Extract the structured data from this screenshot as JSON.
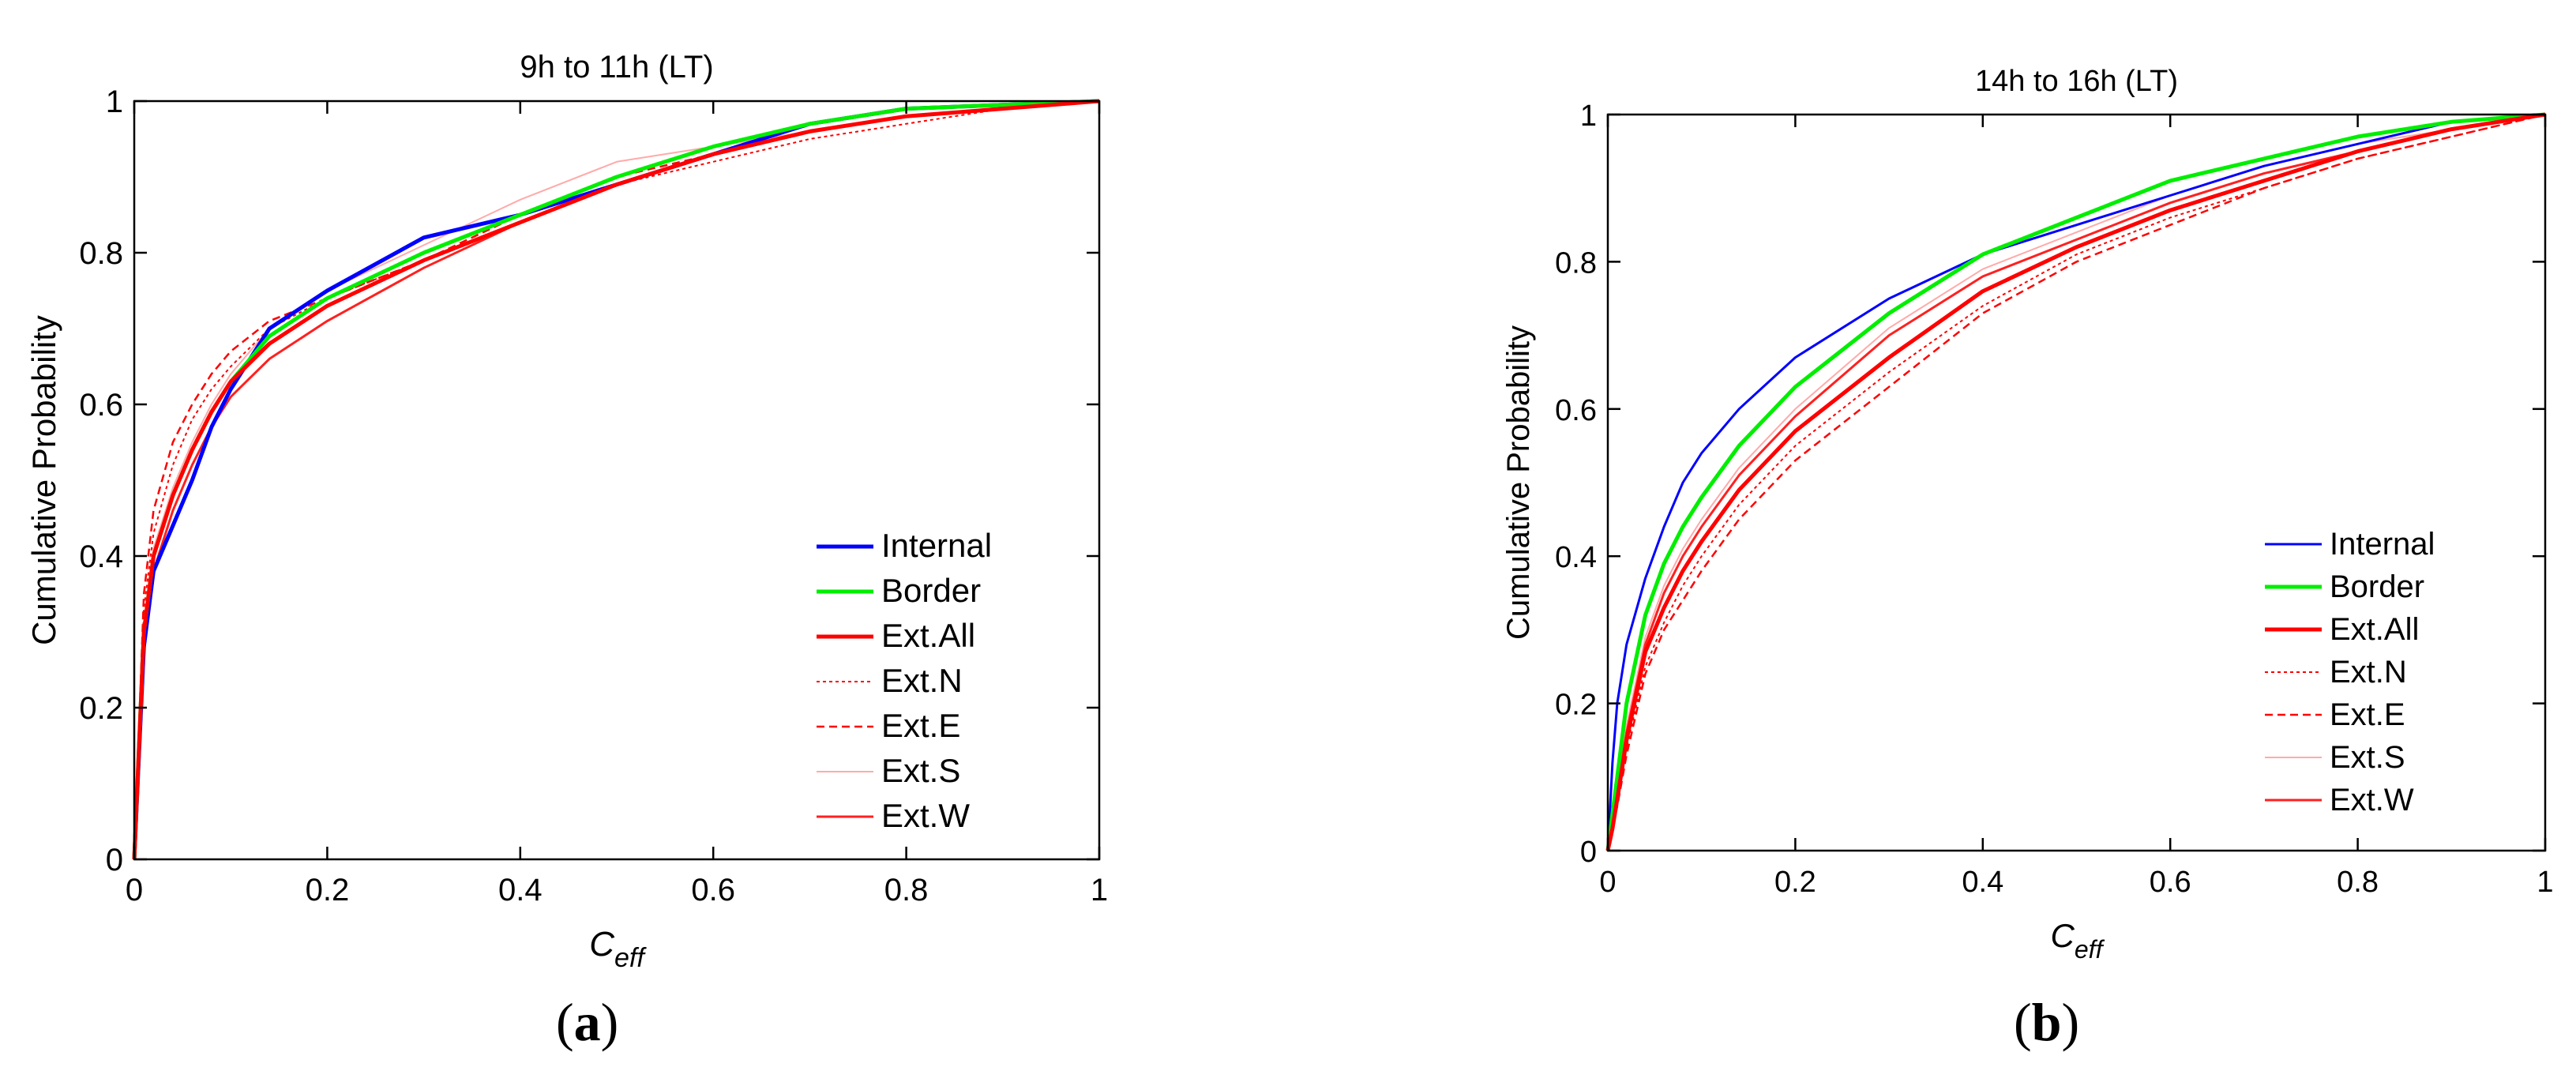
{
  "chart_data": [
    {
      "type": "line",
      "panel_label": "(a)",
      "panel_label_parts": [
        "(",
        "a",
        ")"
      ],
      "title": "9h to 11h (LT)",
      "xlabel": "C",
      "xlabel_subscript": "eff",
      "ylabel": "Cumulative Probability",
      "xlim": [
        0,
        1
      ],
      "ylim": [
        0,
        1
      ],
      "xticks": [
        "0",
        "0.2",
        "0.4",
        "0.6",
        "0.8",
        "1"
      ],
      "yticks": [
        "0",
        "0.2",
        "0.4",
        "0.6",
        "0.8",
        "1"
      ],
      "legend_position": "lower-right",
      "series": [
        {
          "name": "Internal",
          "color": "#0000ff",
          "style": "solid-thick",
          "x": [
            0,
            0.01,
            0.02,
            0.04,
            0.06,
            0.08,
            0.1,
            0.14,
            0.2,
            0.3,
            0.4,
            0.5,
            0.6,
            0.7,
            0.8,
            0.9,
            1.0
          ],
          "y": [
            0,
            0.28,
            0.38,
            0.44,
            0.5,
            0.57,
            0.62,
            0.7,
            0.75,
            0.82,
            0.85,
            0.89,
            0.93,
            0.97,
            0.99,
            0.995,
            1.0
          ]
        },
        {
          "name": "Border",
          "color": "#00ee00",
          "style": "solid-thick",
          "x": [
            0,
            0.01,
            0.02,
            0.04,
            0.06,
            0.08,
            0.1,
            0.14,
            0.2,
            0.3,
            0.4,
            0.5,
            0.6,
            0.7,
            0.8,
            0.9,
            1.0
          ],
          "y": [
            0,
            0.3,
            0.4,
            0.48,
            0.54,
            0.59,
            0.63,
            0.69,
            0.74,
            0.8,
            0.85,
            0.9,
            0.94,
            0.97,
            0.99,
            0.995,
            1.0
          ]
        },
        {
          "name": "Ext.All",
          "color": "#ff0000",
          "style": "solid-thick",
          "x": [
            0,
            0.01,
            0.02,
            0.04,
            0.06,
            0.08,
            0.1,
            0.14,
            0.2,
            0.3,
            0.4,
            0.5,
            0.6,
            0.7,
            0.8,
            0.9,
            1.0
          ],
          "y": [
            0,
            0.3,
            0.4,
            0.48,
            0.54,
            0.59,
            0.63,
            0.68,
            0.73,
            0.79,
            0.84,
            0.89,
            0.93,
            0.96,
            0.98,
            0.99,
            1.0
          ]
        },
        {
          "name": "Ext.N",
          "color": "#ff0000",
          "style": "dotted",
          "x": [
            0,
            0.01,
            0.02,
            0.04,
            0.06,
            0.08,
            0.1,
            0.14,
            0.2,
            0.3,
            0.4,
            0.5,
            0.6,
            0.7,
            0.8,
            0.9,
            1.0
          ],
          "y": [
            0,
            0.33,
            0.43,
            0.52,
            0.58,
            0.62,
            0.65,
            0.7,
            0.74,
            0.79,
            0.84,
            0.89,
            0.92,
            0.95,
            0.97,
            0.99,
            1.0
          ]
        },
        {
          "name": "Ext.E",
          "color": "#ff0000",
          "style": "dashed",
          "x": [
            0,
            0.01,
            0.02,
            0.04,
            0.06,
            0.08,
            0.1,
            0.14,
            0.2,
            0.3,
            0.4,
            0.5,
            0.6,
            0.7,
            0.8,
            0.9,
            1.0
          ],
          "y": [
            0,
            0.35,
            0.46,
            0.55,
            0.6,
            0.64,
            0.67,
            0.71,
            0.74,
            0.79,
            0.85,
            0.9,
            0.93,
            0.96,
            0.98,
            0.99,
            1.0
          ]
        },
        {
          "name": "Ext.S",
          "color": "#ffaaaa",
          "style": "thin",
          "x": [
            0,
            0.01,
            0.02,
            0.04,
            0.06,
            0.08,
            0.1,
            0.14,
            0.2,
            0.3,
            0.4,
            0.5,
            0.6,
            0.7,
            0.8,
            0.9,
            1.0
          ],
          "y": [
            0,
            0.31,
            0.41,
            0.49,
            0.55,
            0.6,
            0.64,
            0.7,
            0.75,
            0.81,
            0.87,
            0.92,
            0.94,
            0.96,
            0.98,
            0.99,
            1.0
          ]
        },
        {
          "name": "Ext.W",
          "color": "#ff2020",
          "style": "solid-thin",
          "x": [
            0,
            0.01,
            0.02,
            0.04,
            0.06,
            0.08,
            0.1,
            0.14,
            0.2,
            0.3,
            0.4,
            0.5,
            0.6,
            0.7,
            0.8,
            0.9,
            1.0
          ],
          "y": [
            0,
            0.28,
            0.38,
            0.46,
            0.52,
            0.57,
            0.61,
            0.66,
            0.71,
            0.78,
            0.84,
            0.89,
            0.93,
            0.96,
            0.98,
            0.99,
            1.0
          ]
        }
      ]
    },
    {
      "type": "line",
      "panel_label": "(b)",
      "panel_label_parts": [
        "(",
        "b",
        ")"
      ],
      "title": "14h to 16h (LT)",
      "xlabel": "C",
      "xlabel_subscript": "eff",
      "ylabel": "Cumulative Probability",
      "xlim": [
        0,
        1
      ],
      "ylim": [
        0,
        1
      ],
      "xticks": [
        "0",
        "0.2",
        "0.4",
        "0.6",
        "0.8",
        "1"
      ],
      "yticks": [
        "0",
        "0.2",
        "0.4",
        "0.6",
        "0.8",
        "1"
      ],
      "legend_position": "lower-right",
      "series": [
        {
          "name": "Internal",
          "color": "#0000ff",
          "style": "solid-thin",
          "x": [
            0,
            0.005,
            0.01,
            0.02,
            0.04,
            0.06,
            0.08,
            0.1,
            0.14,
            0.2,
            0.3,
            0.4,
            0.5,
            0.6,
            0.7,
            0.8,
            0.9,
            1.0
          ],
          "y": [
            0,
            0.12,
            0.2,
            0.28,
            0.37,
            0.44,
            0.5,
            0.54,
            0.6,
            0.67,
            0.75,
            0.81,
            0.85,
            0.89,
            0.93,
            0.96,
            0.99,
            1.0
          ]
        },
        {
          "name": "Border",
          "color": "#00ee00",
          "style": "solid-thick",
          "x": [
            0,
            0.005,
            0.01,
            0.02,
            0.04,
            0.06,
            0.08,
            0.1,
            0.14,
            0.2,
            0.3,
            0.4,
            0.5,
            0.6,
            0.7,
            0.8,
            0.9,
            1.0
          ],
          "y": [
            0,
            0.05,
            0.1,
            0.2,
            0.32,
            0.39,
            0.44,
            0.48,
            0.55,
            0.63,
            0.73,
            0.81,
            0.86,
            0.91,
            0.94,
            0.97,
            0.99,
            1.0
          ]
        },
        {
          "name": "Ext.All",
          "color": "#ff0000",
          "style": "solid-thick",
          "x": [
            0,
            0.005,
            0.01,
            0.02,
            0.04,
            0.06,
            0.08,
            0.1,
            0.14,
            0.2,
            0.3,
            0.4,
            0.5,
            0.6,
            0.7,
            0.8,
            0.9,
            1.0
          ],
          "y": [
            0,
            0.03,
            0.07,
            0.15,
            0.27,
            0.33,
            0.38,
            0.42,
            0.49,
            0.57,
            0.67,
            0.76,
            0.82,
            0.87,
            0.91,
            0.95,
            0.98,
            1.0
          ]
        },
        {
          "name": "Ext.N",
          "color": "#ff0000",
          "style": "dotted",
          "x": [
            0,
            0.005,
            0.01,
            0.02,
            0.04,
            0.06,
            0.08,
            0.1,
            0.14,
            0.2,
            0.3,
            0.4,
            0.5,
            0.6,
            0.7,
            0.8,
            0.9,
            1.0
          ],
          "y": [
            0,
            0.03,
            0.06,
            0.14,
            0.25,
            0.31,
            0.36,
            0.4,
            0.47,
            0.55,
            0.65,
            0.74,
            0.81,
            0.86,
            0.9,
            0.94,
            0.97,
            1.0
          ]
        },
        {
          "name": "Ext.E",
          "color": "#ff0000",
          "style": "dashed",
          "x": [
            0,
            0.005,
            0.01,
            0.02,
            0.04,
            0.06,
            0.08,
            0.1,
            0.14,
            0.2,
            0.3,
            0.4,
            0.5,
            0.6,
            0.7,
            0.8,
            0.9,
            1.0
          ],
          "y": [
            0,
            0.03,
            0.06,
            0.13,
            0.24,
            0.3,
            0.34,
            0.38,
            0.45,
            0.53,
            0.63,
            0.73,
            0.8,
            0.85,
            0.9,
            0.94,
            0.97,
            1.0
          ]
        },
        {
          "name": "Ext.S",
          "color": "#ffaaaa",
          "style": "thin",
          "x": [
            0,
            0.005,
            0.01,
            0.02,
            0.04,
            0.06,
            0.08,
            0.1,
            0.14,
            0.2,
            0.3,
            0.4,
            0.5,
            0.6,
            0.7,
            0.8,
            0.9,
            1.0
          ],
          "y": [
            0,
            0.04,
            0.08,
            0.17,
            0.29,
            0.36,
            0.41,
            0.45,
            0.52,
            0.6,
            0.71,
            0.79,
            0.84,
            0.89,
            0.93,
            0.96,
            0.98,
            1.0
          ]
        },
        {
          "name": "Ext.W",
          "color": "#ff2020",
          "style": "solid-thin",
          "x": [
            0,
            0.005,
            0.01,
            0.02,
            0.04,
            0.06,
            0.08,
            0.1,
            0.14,
            0.2,
            0.3,
            0.4,
            0.5,
            0.6,
            0.7,
            0.8,
            0.9,
            1.0
          ],
          "y": [
            0,
            0.04,
            0.08,
            0.16,
            0.28,
            0.35,
            0.4,
            0.44,
            0.51,
            0.59,
            0.7,
            0.78,
            0.83,
            0.88,
            0.92,
            0.95,
            0.98,
            1.0
          ]
        }
      ]
    }
  ]
}
